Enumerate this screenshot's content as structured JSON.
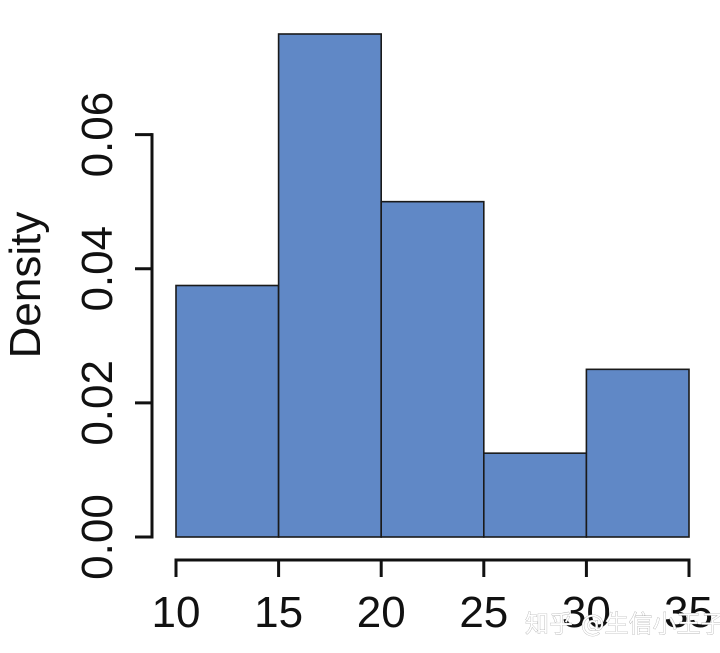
{
  "chart_data": {
    "type": "bar",
    "subtype": "histogram",
    "bins": [
      {
        "start": 10,
        "end": 15,
        "density": 0.0375
      },
      {
        "start": 15,
        "end": 20,
        "density": 0.075
      },
      {
        "start": 20,
        "end": 25,
        "density": 0.05
      },
      {
        "start": 25,
        "end": 30,
        "density": 0.0125
      },
      {
        "start": 30,
        "end": 35,
        "density": 0.025
      }
    ],
    "title": "",
    "xlabel": "",
    "ylabel": "Density",
    "xlim": [
      10,
      35
    ],
    "ylim": [
      0,
      0.075
    ],
    "x_ticks": [
      "10",
      "15",
      "20",
      "25",
      "30",
      "35"
    ],
    "x_tick_values": [
      10,
      15,
      20,
      25,
      30,
      35
    ],
    "y_ticks": [
      "0.00",
      "0.02",
      "0.04",
      "0.06"
    ],
    "y_tick_values": [
      0,
      0.02,
      0.04,
      0.06
    ],
    "bar_color": "#6088C6",
    "edge_color": "#1a1a1a",
    "grid": false
  },
  "watermark": "知乎 @生信小王子"
}
